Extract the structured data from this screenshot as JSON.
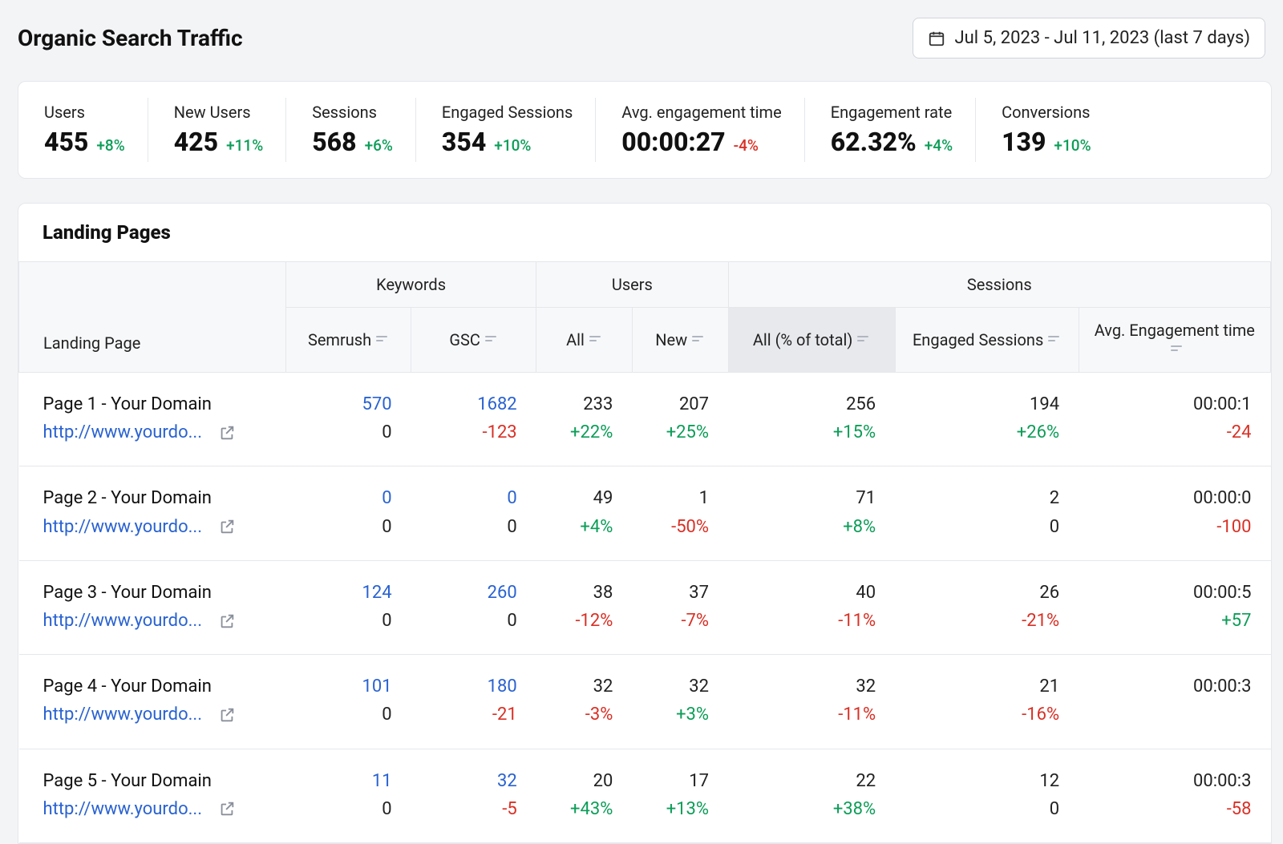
{
  "colors": {
    "pageBg": "#f3f4f6",
    "cardBg": "#ffffff",
    "border": "#e5e7eb",
    "text": "#111111",
    "link": "#2962d1",
    "positive": "#0c9d58",
    "negative": "#d93025",
    "headerBg": "#f7f8fa",
    "activeSortBg": "#e8e9ed",
    "mutedIcon": "#8a8f9a"
  },
  "header": {
    "title": "Organic Search Traffic",
    "dateRange": "Jul 5, 2023 - Jul 11, 2023 (last 7 days)"
  },
  "metrics": [
    {
      "label": "Users",
      "value": "455",
      "delta": "+8%",
      "deltaDir": "pos"
    },
    {
      "label": "New Users",
      "value": "425",
      "delta": "+11%",
      "deltaDir": "pos"
    },
    {
      "label": "Sessions",
      "value": "568",
      "delta": "+6%",
      "deltaDir": "pos"
    },
    {
      "label": "Engaged Sessions",
      "value": "354",
      "delta": "+10%",
      "deltaDir": "pos"
    },
    {
      "label": "Avg. engagement time",
      "value": "00:00:27",
      "delta": "-4%",
      "deltaDir": "neg"
    },
    {
      "label": "Engagement rate",
      "value": "62.32%",
      "delta": "+4%",
      "deltaDir": "pos"
    },
    {
      "label": "Conversions",
      "value": "139",
      "delta": "+10%",
      "deltaDir": "pos"
    }
  ],
  "landingPages": {
    "title": "Landing Pages",
    "columns": {
      "landingPage": "Landing Page",
      "keywords": "Keywords",
      "users": "Users",
      "sessions": "Sessions",
      "sub": {
        "semrush": "Semrush",
        "gsc": "GSC",
        "allUsers": "All",
        "newUsers": "New",
        "allSessions": "All (% of total)",
        "engagedSessions": "Engaged Sessions",
        "avgEngTime": "Avg. Engagement time"
      },
      "activeSort": "allSessions"
    },
    "rows": [
      {
        "title": "Page 1 - Your Domain",
        "url": "http://www.yourdo...",
        "semrush": {
          "v": "570",
          "d": "0",
          "dClass": "plain"
        },
        "gsc": {
          "v": "1682",
          "d": "-123",
          "dClass": "red"
        },
        "allU": {
          "v": "233",
          "d": "+22%",
          "dClass": "green"
        },
        "newU": {
          "v": "207",
          "d": "+25%",
          "dClass": "green"
        },
        "allS": {
          "v": "256",
          "d": "+15%",
          "dClass": "green"
        },
        "es": {
          "v": "194",
          "d": "+26%",
          "dClass": "green"
        },
        "aet": {
          "v": "00:00:1",
          "d": "-24",
          "dClass": "red"
        }
      },
      {
        "title": "Page 2 - Your Domain",
        "url": "http://www.yourdo...",
        "semrush": {
          "v": "0",
          "d": "0",
          "dClass": "plain"
        },
        "gsc": {
          "v": "0",
          "d": "0",
          "dClass": "plain"
        },
        "allU": {
          "v": "49",
          "d": "+4%",
          "dClass": "green"
        },
        "newU": {
          "v": "1",
          "d": "-50%",
          "dClass": "red"
        },
        "allS": {
          "v": "71",
          "d": "+8%",
          "dClass": "green"
        },
        "es": {
          "v": "2",
          "d": "0",
          "dClass": "plain"
        },
        "aet": {
          "v": "00:00:0",
          "d": "-100",
          "dClass": "red"
        }
      },
      {
        "title": "Page 3 - Your Domain",
        "url": "http://www.yourdo...",
        "semrush": {
          "v": "124",
          "d": "0",
          "dClass": "plain"
        },
        "gsc": {
          "v": "260",
          "d": "0",
          "dClass": "plain"
        },
        "allU": {
          "v": "38",
          "d": "-12%",
          "dClass": "red"
        },
        "newU": {
          "v": "37",
          "d": "-7%",
          "dClass": "red"
        },
        "allS": {
          "v": "40",
          "d": "-11%",
          "dClass": "red"
        },
        "es": {
          "v": "26",
          "d": "-21%",
          "dClass": "red"
        },
        "aet": {
          "v": "00:00:5",
          "d": "+57",
          "dClass": "green"
        }
      },
      {
        "title": "Page 4 - Your Domain",
        "url": "http://www.yourdo...",
        "semrush": {
          "v": "101",
          "d": "0",
          "dClass": "plain"
        },
        "gsc": {
          "v": "180",
          "d": "-21",
          "dClass": "red"
        },
        "allU": {
          "v": "32",
          "d": "-3%",
          "dClass": "red"
        },
        "newU": {
          "v": "32",
          "d": "+3%",
          "dClass": "green"
        },
        "allS": {
          "v": "32",
          "d": "-11%",
          "dClass": "red"
        },
        "es": {
          "v": "21",
          "d": "-16%",
          "dClass": "red"
        },
        "aet": {
          "v": "00:00:3",
          "d": "",
          "dClass": "plain"
        }
      },
      {
        "title": "Page 5 - Your Domain",
        "url": "http://www.yourdo...",
        "semrush": {
          "v": "11",
          "d": "0",
          "dClass": "plain"
        },
        "gsc": {
          "v": "32",
          "d": "-5",
          "dClass": "red"
        },
        "allU": {
          "v": "20",
          "d": "+43%",
          "dClass": "green"
        },
        "newU": {
          "v": "17",
          "d": "+13%",
          "dClass": "green"
        },
        "allS": {
          "v": "22",
          "d": "+38%",
          "dClass": "green"
        },
        "es": {
          "v": "12",
          "d": "0",
          "dClass": "plain"
        },
        "aet": {
          "v": "00:00:3",
          "d": "-58",
          "dClass": "red"
        }
      }
    ]
  }
}
